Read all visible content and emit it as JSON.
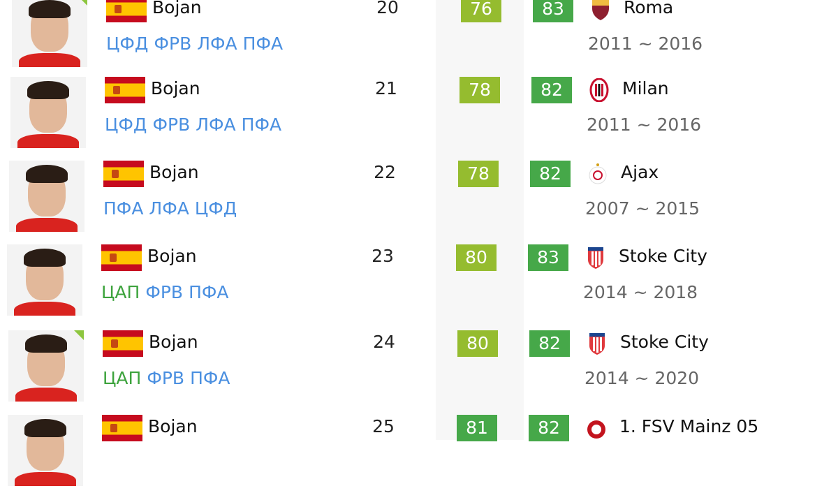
{
  "colors": {
    "overall_light": "#95bc2f",
    "overall_dark": "#46a849",
    "potential": "#46a849",
    "position_primary": "#3da33d",
    "position_other": "#4a8fe0"
  },
  "players": [
    {
      "name": "Bojan",
      "nation": "Spain",
      "age": "20",
      "overall": "76",
      "potential": "83",
      "club": "Roma",
      "club_icon": "roma-crest-icon",
      "years": "2011 ~ 2016",
      "positions": [
        {
          "label": "ЦФД",
          "primary": false
        },
        {
          "label": "ФРВ",
          "primary": false
        },
        {
          "label": "ЛФА",
          "primary": false
        },
        {
          "label": "ПФА",
          "primary": false
        }
      ],
      "marked": true
    },
    {
      "name": "Bojan",
      "nation": "Spain",
      "age": "21",
      "overall": "78",
      "potential": "82",
      "club": "Milan",
      "club_icon": "milan-crest-icon",
      "years": "2011 ~ 2016",
      "positions": [
        {
          "label": "ЦФД",
          "primary": false
        },
        {
          "label": "ФРВ",
          "primary": false
        },
        {
          "label": "ЛФА",
          "primary": false
        },
        {
          "label": "ПФА",
          "primary": false
        }
      ],
      "marked": false
    },
    {
      "name": "Bojan",
      "nation": "Spain",
      "age": "22",
      "overall": "78",
      "potential": "82",
      "club": "Ajax",
      "club_icon": "ajax-crest-icon",
      "years": "2007 ~ 2015",
      "positions": [
        {
          "label": "ПФА",
          "primary": false
        },
        {
          "label": "ЛФА",
          "primary": false
        },
        {
          "label": "ЦФД",
          "primary": false
        }
      ],
      "marked": false
    },
    {
      "name": "Bojan",
      "nation": "Spain",
      "age": "23",
      "overall": "80",
      "potential": "83",
      "club": "Stoke City",
      "club_icon": "stoke-crest-icon",
      "years": "2014 ~ 2018",
      "positions": [
        {
          "label": "ЦАП",
          "primary": true
        },
        {
          "label": "ФРВ",
          "primary": false
        },
        {
          "label": "ПФА",
          "primary": false
        }
      ],
      "marked": false
    },
    {
      "name": "Bojan",
      "nation": "Spain",
      "age": "24",
      "overall": "80",
      "potential": "82",
      "club": "Stoke City",
      "club_icon": "stoke-crest-icon",
      "years": "2014 ~ 2020",
      "positions": [
        {
          "label": "ЦАП",
          "primary": true
        },
        {
          "label": "ФРВ",
          "primary": false
        },
        {
          "label": "ПФА",
          "primary": false
        }
      ],
      "marked": true
    },
    {
      "name": "Bojan",
      "nation": "Spain",
      "age": "25",
      "overall": "81",
      "potential": "82",
      "club": "1. FSV Mainz 05",
      "club_icon": "mainz-crest-icon",
      "years": "",
      "positions": [],
      "marked": false
    }
  ]
}
